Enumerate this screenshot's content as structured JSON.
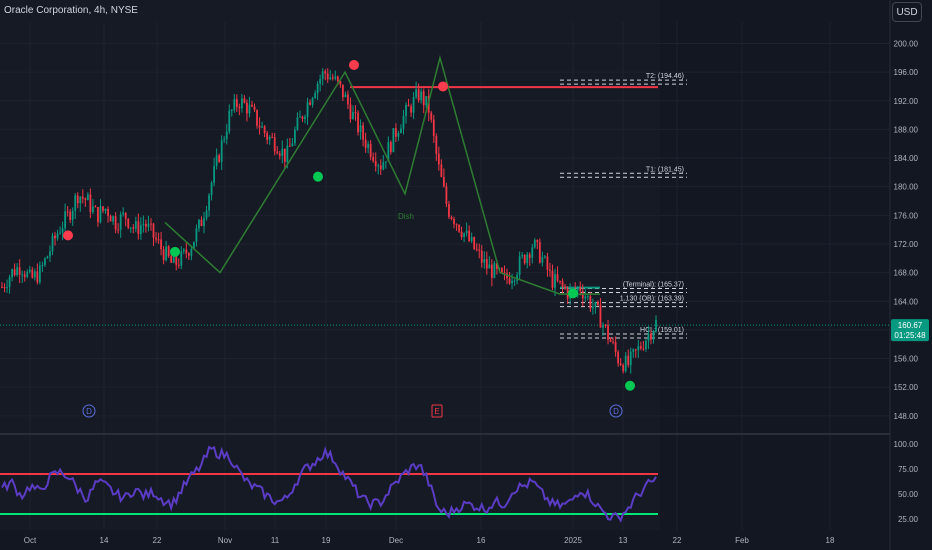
{
  "header": {
    "title": "Oracle Corporation, 4h, NYSE",
    "currency_button": "USD"
  },
  "colors": {
    "background": "#131722",
    "grid": "#1e222d",
    "up": "#089981",
    "down": "#f23645",
    "pattern": "#2e7d32",
    "rsi": "#5b3cc4",
    "overbought": "#f23645",
    "oversold": "#00e676"
  },
  "chart_data": {
    "type": "candlestick",
    "x_ticks": [
      "Oct",
      "14",
      "22",
      "Nov",
      "11",
      "19",
      "Dec",
      "16",
      "2025",
      "13",
      "22",
      "Feb",
      "18"
    ],
    "y_ticks": [
      148,
      152,
      156,
      160,
      164,
      168,
      172,
      176,
      180,
      184,
      188,
      192,
      196,
      200
    ],
    "ylim": [
      145.6,
      203.0
    ],
    "last_price": "160.67",
    "countdown": "01:25:48",
    "close_path": [
      166,
      168,
      169,
      167,
      168,
      171,
      174,
      176,
      179,
      178,
      176,
      177,
      175,
      176,
      174,
      175,
      173,
      171,
      169,
      170,
      172,
      175,
      180,
      185,
      190,
      192,
      191,
      189,
      187,
      186,
      184,
      188,
      191,
      194,
      196,
      195,
      193,
      190,
      187,
      185,
      183,
      186,
      189,
      191,
      193,
      191,
      183,
      177,
      175,
      173,
      171,
      169,
      168,
      167,
      168,
      170,
      172,
      170,
      167,
      166,
      165,
      166,
      164,
      162,
      159,
      156,
      155,
      157,
      159,
      161
    ],
    "levels": [
      {
        "label": "T2: (194.46)",
        "value": 194.46
      },
      {
        "label": "T1: (181.45)",
        "value": 181.45
      },
      {
        "label": "(Terminal): (165.37)",
        "value": 165.37
      },
      {
        "label": "1.130 (OB): (163.39)",
        "value": 163.39
      },
      {
        "label": "HCL: (159.01)",
        "value": 159.01
      }
    ],
    "resistance_level": 193.9,
    "pattern_points": [
      [
        165,
        175
      ],
      [
        220,
        168
      ],
      [
        345,
        196
      ],
      [
        405,
        179
      ],
      [
        440,
        198
      ],
      [
        500,
        168
      ],
      [
        560,
        165
      ],
      [
        600,
        165
      ]
    ],
    "pattern_labels": [
      {
        "text": "Dish"
      },
      {
        "text": "E"
      }
    ],
    "signals_up": [
      [
        175,
        170.9
      ],
      [
        318,
        181.4
      ],
      [
        573,
        165.1
      ],
      [
        630,
        152.2
      ]
    ],
    "signals_down": [
      [
        68,
        173.2
      ],
      [
        354,
        197.0
      ],
      [
        443,
        194.0
      ]
    ],
    "event_markers": [
      {
        "text": "D"
      },
      {
        "text": "E"
      },
      {
        "text": "D"
      }
    ],
    "rsi": {
      "y_ticks": [
        25.0,
        50.0,
        75.0,
        100.0
      ],
      "ylim": [
        14,
        107
      ],
      "overbought": 70,
      "oversold": 30,
      "values": [
        55,
        62,
        48,
        58,
        52,
        66,
        72,
        68,
        55,
        45,
        62,
        58,
        50,
        46,
        55,
        48,
        52,
        44,
        40,
        55,
        68,
        78,
        95,
        90,
        88,
        72,
        60,
        55,
        48,
        42,
        45,
        62,
        75,
        82,
        92,
        85,
        70,
        58,
        45,
        40,
        42,
        55,
        66,
        75,
        80,
        62,
        35,
        30,
        36,
        40,
        38,
        35,
        42,
        40,
        55,
        58,
        62,
        50,
        40,
        38,
        42,
        55,
        48,
        36,
        28,
        26,
        35,
        48,
        58,
        65
      ]
    }
  }
}
